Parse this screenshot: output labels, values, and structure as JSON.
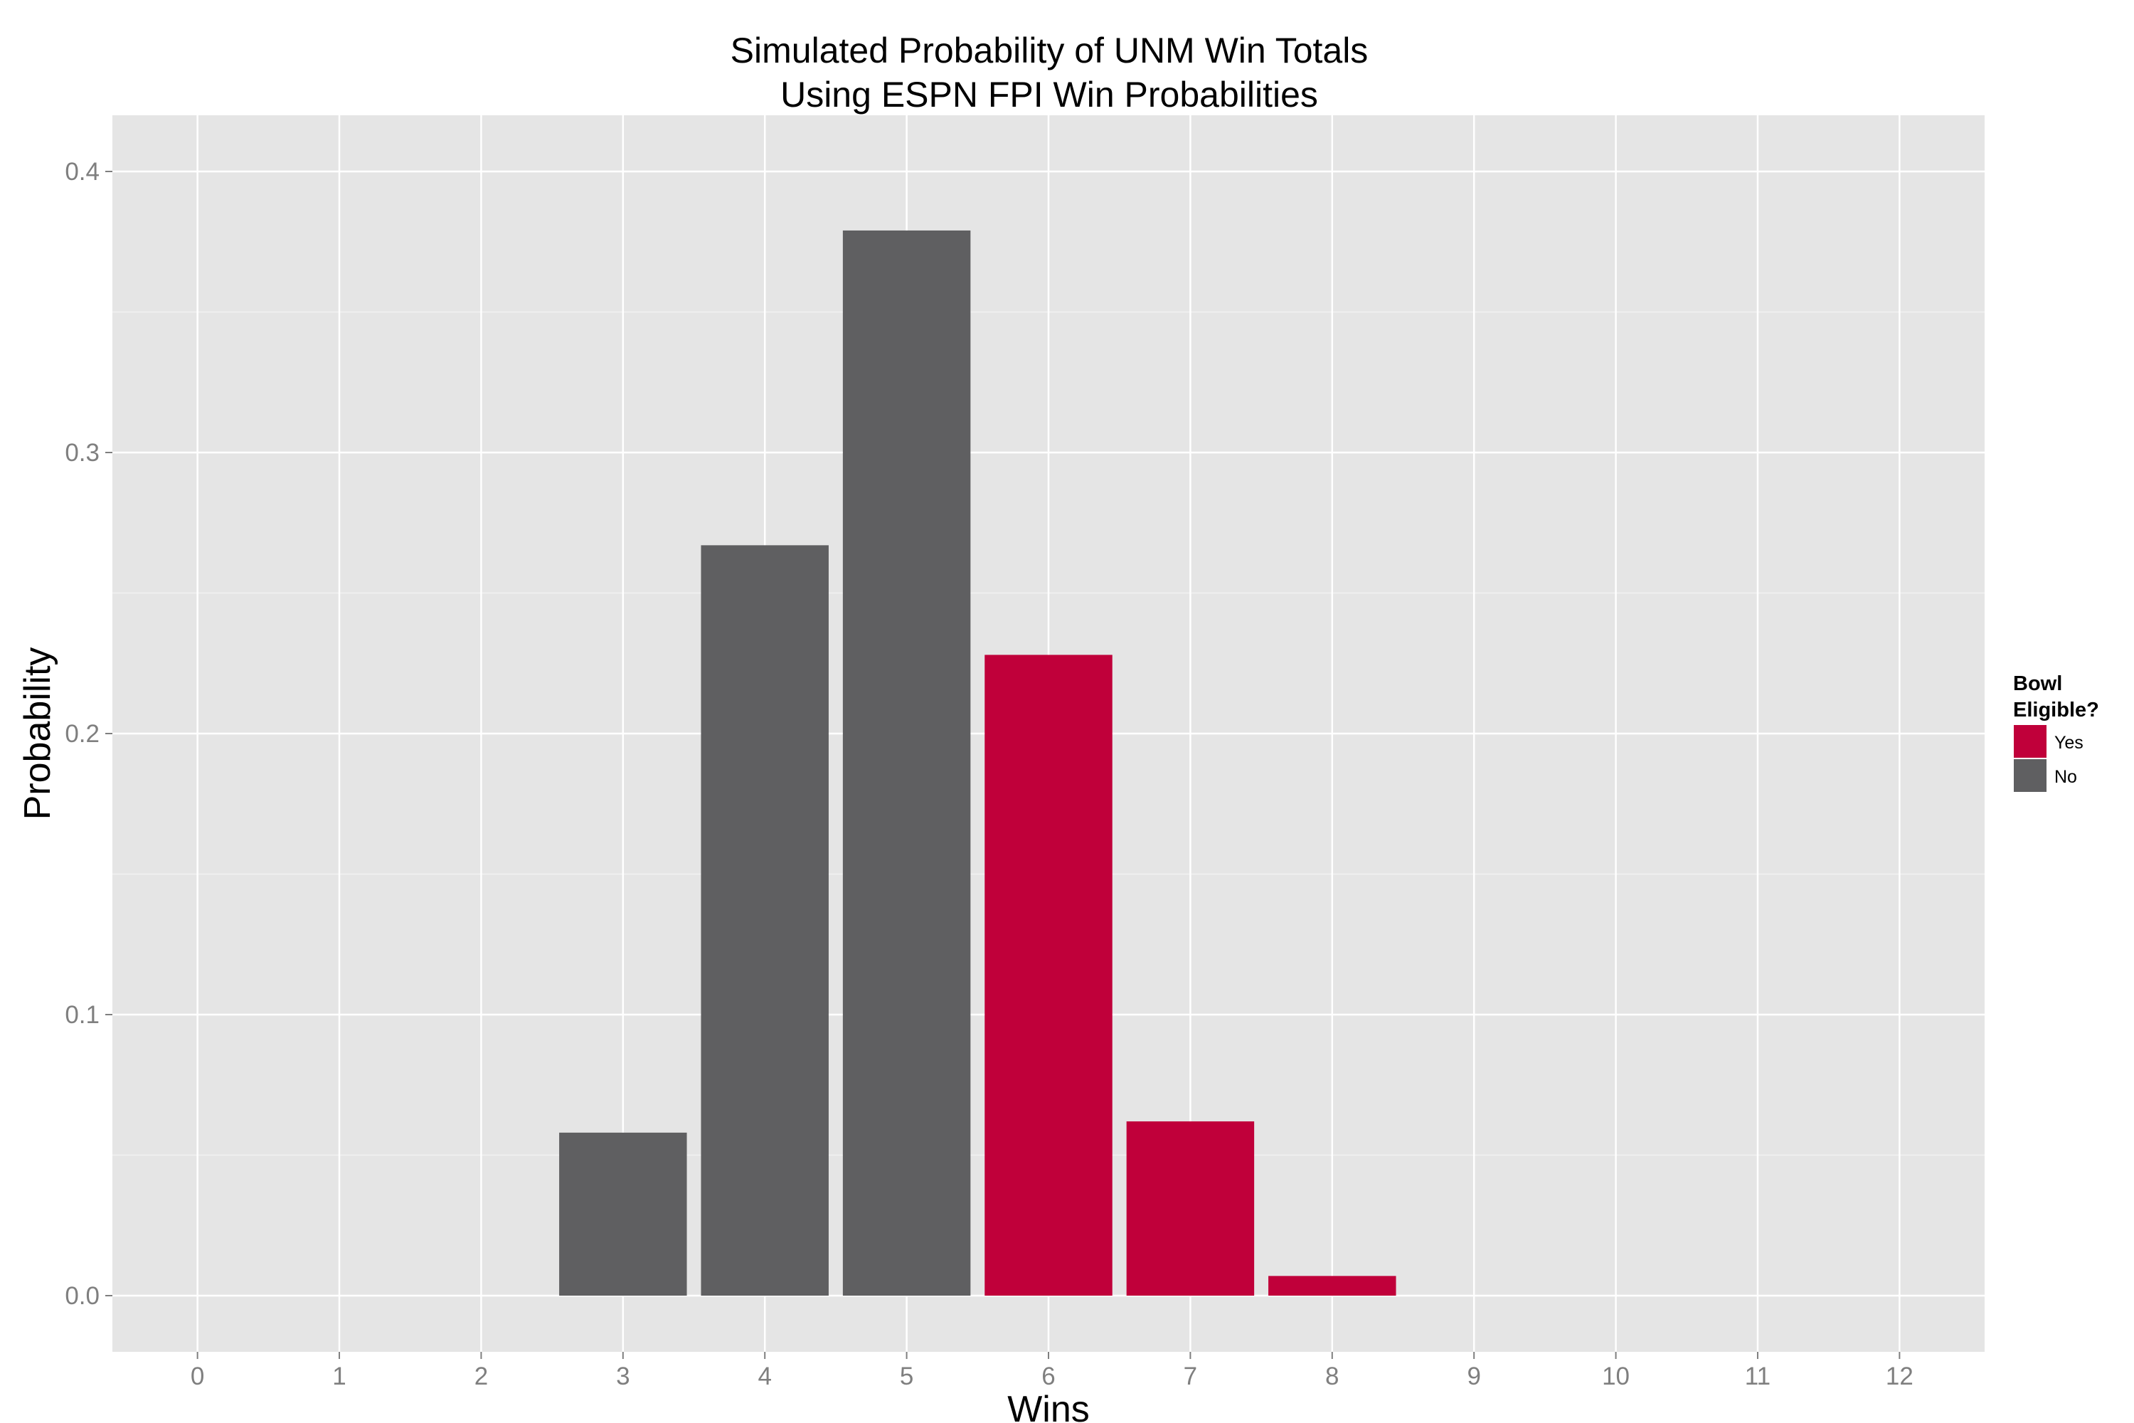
{
  "chart_data": {
    "type": "bar",
    "title": "Simulated Probability of UNM Win Totals",
    "subtitle": "Using ESPN FPI Win Probabilities",
    "xlabel": "Wins",
    "ylabel": "Probability",
    "categories": [
      "0",
      "1",
      "2",
      "3",
      "4",
      "5",
      "6",
      "7",
      "8",
      "9",
      "10",
      "11",
      "12"
    ],
    "values": [
      0,
      0,
      0,
      0.058,
      0.267,
      0.379,
      0.228,
      0.062,
      0.007,
      0,
      0,
      0,
      0
    ],
    "bowl_eligible": [
      "No",
      "No",
      "No",
      "No",
      "No",
      "No",
      "Yes",
      "Yes",
      "Yes",
      "Yes",
      "Yes",
      "Yes",
      "Yes"
    ],
    "ylim": [
      -0.02,
      0.42
    ],
    "yticks": [
      0.0,
      0.1,
      0.2,
      0.3,
      0.4
    ],
    "ytick_labels": [
      "0.0",
      "0.1",
      "0.2",
      "0.3",
      "0.4"
    ],
    "grid": true,
    "legend": {
      "title_line1": "Bowl",
      "title_line2": "Eligible?",
      "position": "right",
      "entries": [
        {
          "label": "Yes",
          "color": "#c0003a"
        },
        {
          "label": "No",
          "color": "#5f5f61"
        }
      ]
    },
    "colors": {
      "Yes": "#c0003a",
      "No": "#5f5f61",
      "panel": "#e5e5e5",
      "grid": "#ffffff",
      "grid_minor": "#f2f2f2",
      "tick_text": "#7f7f7f"
    }
  }
}
